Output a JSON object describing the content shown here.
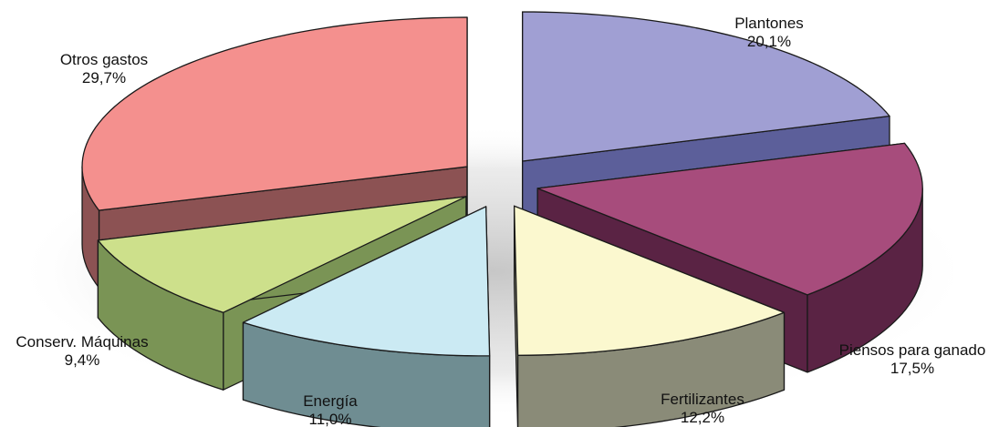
{
  "chart_data": {
    "type": "pie",
    "title": "",
    "series": [
      {
        "name": "Plantones",
        "value": 20.1,
        "display": "20,1%",
        "top_color": "#a09fd3",
        "side_color": "#5c5f9a"
      },
      {
        "name": "Piensos para ganado",
        "value": 17.5,
        "display": "17,5%",
        "top_color": "#a74c7c",
        "side_color": "#5a2344"
      },
      {
        "name": "Fertilizantes",
        "value": 12.2,
        "display": "12,2%",
        "top_color": "#fbf8cf",
        "side_color": "#8a8b78"
      },
      {
        "name": "Energía",
        "value": 11.0,
        "display": "11,0%",
        "top_color": "#cbeaf3",
        "side_color": "#6f8d92"
      },
      {
        "name": "Conserv. Máquinas",
        "value": 9.4,
        "display": "9,4%",
        "top_color": "#cde08b",
        "side_color": "#7a9455"
      },
      {
        "name": "Otros gastos",
        "value": 29.7,
        "display": "29,7%",
        "top_color": "#f4908e",
        "side_color": "#8c5253"
      }
    ],
    "style": "3d-exploded",
    "legend": "none"
  }
}
